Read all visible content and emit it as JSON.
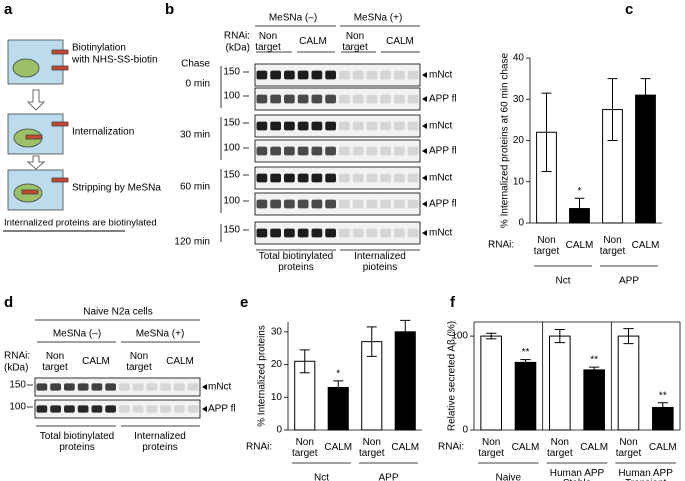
{
  "diagram_a": {
    "label": "a",
    "steps": [
      "Biotinylation",
      "with NHS-SS-biotin",
      "Internalization",
      "Stripping by MeSNa"
    ],
    "footer": "Internalized proteins are biotinylated"
  },
  "blot_b": {
    "label": "b",
    "mesna": [
      "MeSNa (–)",
      "MeSNa (+)"
    ],
    "rnai": "RNAi:",
    "targets": [
      "Non target",
      "CALM",
      "Non target",
      "CALM"
    ],
    "kda": "(kDa)",
    "chase": "Chase",
    "times": [
      "0 min",
      "30 min",
      "60 min",
      "120 min"
    ],
    "markers": [
      "150",
      "100"
    ],
    "bands": [
      "mNct",
      "APP fl"
    ],
    "footer": [
      "Total biotinylated proteins",
      "Internalized pioteins"
    ]
  },
  "blot_d": {
    "label": "d",
    "title": "Naive N2a cells",
    "mesna": [
      "MeSNa (–)",
      "MeSNa (+)"
    ],
    "rnai": "RNAi:",
    "kda": "(kDa)",
    "targets": [
      "Non target",
      "CALM",
      "Non target",
      "CALM"
    ],
    "markers": [
      "150",
      "100"
    ],
    "bands": [
      "mNct",
      "APP fl"
    ],
    "footer": [
      "Total biotinylated proteins",
      "Internalized proteins"
    ]
  },
  "chart_data": [
    {
      "type": "bar",
      "label": "c",
      "ylabel": "% Internalized proteins at 60 min chase",
      "rnai": "RNAi:",
      "categories": [
        "Non target",
        "CALM",
        "Non target",
        "CALM"
      ],
      "values": [
        22,
        3.5,
        27.5,
        31
      ],
      "errors": [
        9.5,
        2.5,
        7.5,
        4
      ],
      "annotations": [
        null,
        "*",
        null,
        null
      ],
      "colors": [
        "#ffffff",
        "#000000",
        "#ffffff",
        "#000000"
      ],
      "groups": [
        "Nct",
        "APP"
      ],
      "ylim": [
        0,
        40
      ],
      "yticks": [
        0,
        10,
        20,
        30,
        40
      ],
      "frame": false
    },
    {
      "type": "bar",
      "label": "e",
      "ylabel": "% Internalized proteins",
      "rnai": "RNAi:",
      "categories": [
        "Non target",
        "CALM",
        "Non target",
        "CALM"
      ],
      "values": [
        21,
        13,
        27,
        30
      ],
      "errors": [
        3.5,
        2,
        4.5,
        3.5
      ],
      "annotations": [
        null,
        "*",
        null,
        null
      ],
      "colors": [
        "#ffffff",
        "#000000",
        "#ffffff",
        "#000000"
      ],
      "groups": [
        "Nct",
        "APP"
      ],
      "ylim": [
        0,
        33
      ],
      "yticks": [
        0,
        10,
        20,
        30
      ],
      "frame": false
    },
    {
      "type": "bar",
      "label": "f",
      "ylabel": "Relative secreted Aβ (%)",
      "rnai": "RNAi:",
      "categories": [
        "Non target",
        "CALM",
        "Non target",
        "CALM",
        "Non target",
        "CALM"
      ],
      "values": [
        100,
        72,
        100,
        64,
        100,
        24
      ],
      "errors": [
        3,
        3,
        7,
        3,
        8,
        5
      ],
      "annotations": [
        null,
        "**",
        null,
        "**",
        null,
        "**"
      ],
      "colors": [
        "#ffffff",
        "#000000",
        "#ffffff",
        "#000000",
        "#ffffff",
        "#000000"
      ],
      "groups": [
        "Naive",
        "Human APP Stable",
        "Human APP Transient"
      ],
      "ylim": [
        0,
        115
      ],
      "yticks": [
        0,
        100
      ],
      "frame": true
    }
  ]
}
